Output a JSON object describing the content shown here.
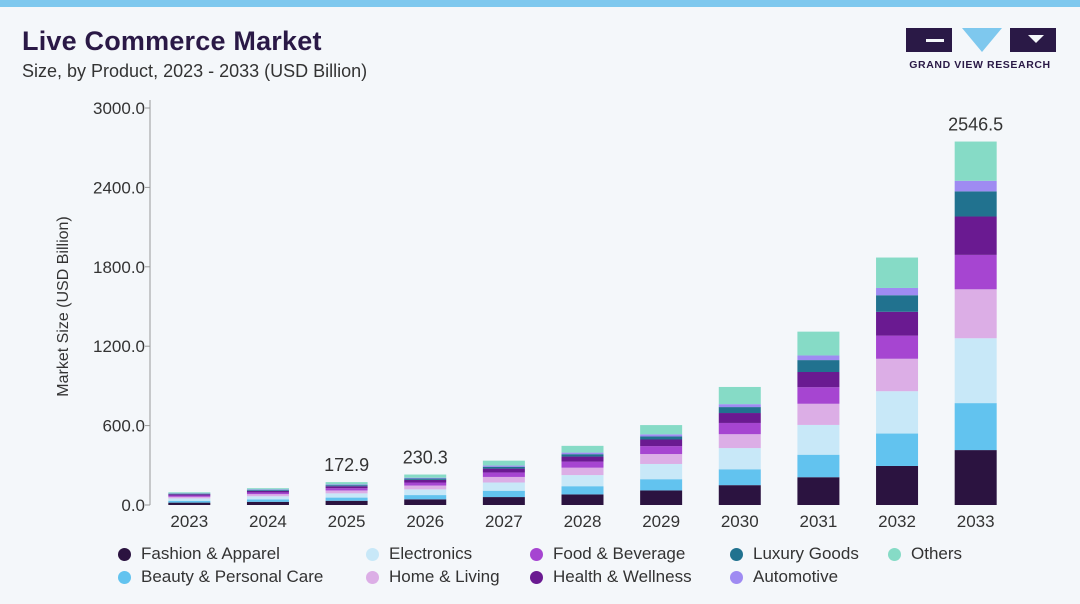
{
  "header": {
    "title": "Live Commerce Market",
    "subtitle": "Size, by Product, 2023 - 2033 (USD Billion)"
  },
  "logo": {
    "text": "GRAND VIEW RESEARCH",
    "color": "#2a1946",
    "accent": "#7ec8ee"
  },
  "chart_data": {
    "type": "bar",
    "stacked": true,
    "title": "Live Commerce Market",
    "subtitle": "Size, by Product, 2023 - 2033 (USD Billion)",
    "xlabel": "",
    "ylabel": "Market Size (USD Billion)",
    "ylim": [
      0,
      3000
    ],
    "yticks": [
      0,
      600,
      1200,
      1800,
      2400,
      3000
    ],
    "ytick_labels": [
      "0.0",
      "600.0",
      "1200.0",
      "1800.0",
      "2400.0",
      "3000.0"
    ],
    "categories": [
      "2023",
      "2024",
      "2025",
      "2026",
      "2027",
      "2028",
      "2029",
      "2030",
      "2031",
      "2032",
      "2033"
    ],
    "series": [
      {
        "name": "Fashion & Apparel",
        "color": "#2b1340",
        "values": [
          18,
          24,
          32,
          43,
          60,
          80,
          110,
          150,
          210,
          295,
          415
        ]
      },
      {
        "name": "Beauty & Personal Care",
        "color": "#62c3ef",
        "values": [
          14,
          18,
          24,
          32,
          48,
          62,
          85,
          120,
          170,
          245,
          355
        ]
      },
      {
        "name": "Electronics",
        "color": "#c8e8f8",
        "values": [
          18,
          24,
          32,
          43,
          62,
          84,
          115,
          160,
          225,
          320,
          490
        ]
      },
      {
        "name": "Home & Living",
        "color": "#dcaee6",
        "values": [
          12,
          16,
          22,
          29,
          42,
          56,
          75,
          105,
          160,
          245,
          370
        ]
      },
      {
        "name": "Food & Beverage",
        "color": "#a645d1",
        "values": [
          10,
          13,
          17,
          23,
          34,
          46,
          60,
          85,
          125,
          175,
          260
        ]
      },
      {
        "name": "Health & Wellness",
        "color": "#6a1a91",
        "values": [
          9,
          12,
          15,
          20,
          29,
          38,
          50,
          75,
          115,
          180,
          290
        ]
      },
      {
        "name": "Luxury Goods",
        "color": "#21728f",
        "values": [
          5,
          6,
          8,
          10,
          14,
          18,
          23,
          45,
          90,
          125,
          190
        ]
      },
      {
        "name": "Automotive",
        "color": "#9f8bf2",
        "values": [
          3,
          4,
          5,
          6,
          9,
          12,
          16,
          22,
          35,
          55,
          80
        ]
      },
      {
        "name": "Others",
        "color": "#86dbc6",
        "values": [
          7,
          10,
          17.9,
          24.3,
          37,
          51,
          70,
          130,
          180,
          230,
          296.5
        ]
      }
    ],
    "data_labels": {
      "2025": "172.9",
      "2026": "230.3",
      "2033": "2546.5"
    },
    "legend": {
      "position": "bottom",
      "order": [
        "Fashion & Apparel",
        "Electronics",
        "Food & Beverage",
        "Luxury Goods",
        "Others",
        "Beauty & Personal Care",
        "Home & Living",
        "Health & Wellness",
        "Automotive"
      ]
    }
  }
}
